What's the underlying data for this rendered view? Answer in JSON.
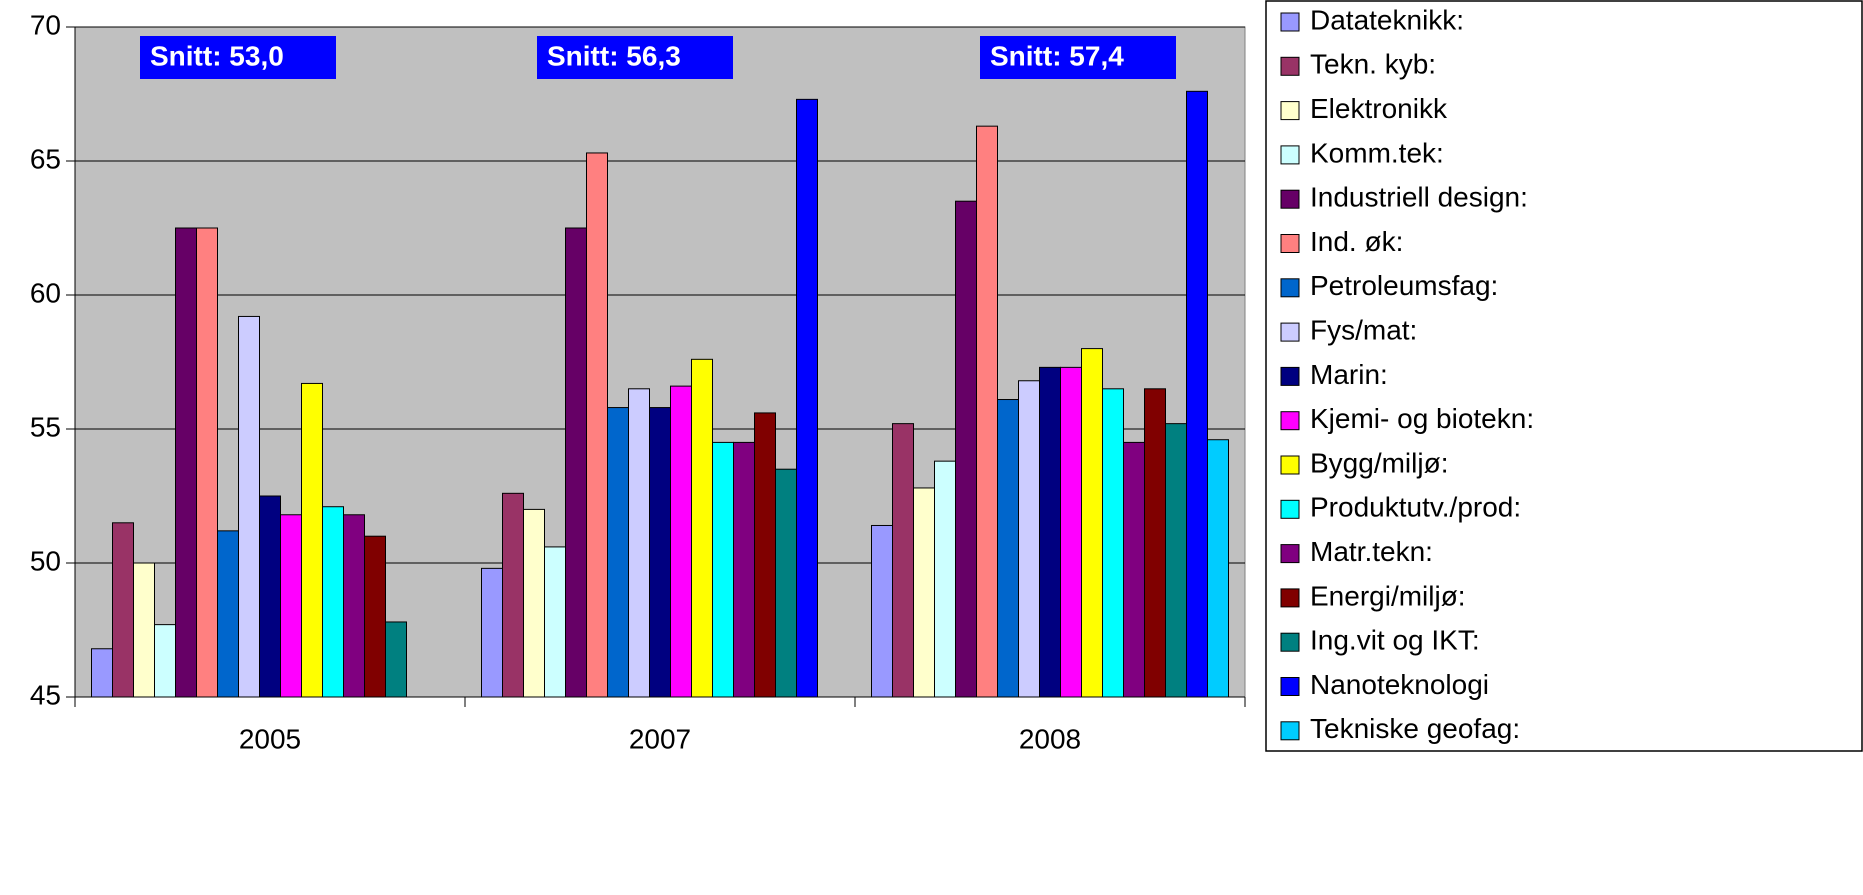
{
  "chart_data": {
    "type": "bar",
    "categories": [
      "2005",
      "2007",
      "2008"
    ],
    "series": [
      {
        "name": "Datateknikk:",
        "color": "#9999ff",
        "values": [
          46.8,
          49.8,
          51.4
        ]
      },
      {
        "name": "Tekn. kyb:",
        "color": "#993366",
        "values": [
          51.5,
          52.6,
          55.2
        ]
      },
      {
        "name": "Elektronikk",
        "color": "#ffffcc",
        "values": [
          50.0,
          52.0,
          52.8
        ]
      },
      {
        "name": "Komm.tek:",
        "color": "#ccffff",
        "values": [
          47.7,
          50.6,
          53.8
        ]
      },
      {
        "name": "Industriell design:",
        "color": "#660066",
        "values": [
          62.5,
          62.5,
          63.5
        ]
      },
      {
        "name": "Ind. øk:",
        "color": "#ff8080",
        "values": [
          62.5,
          65.3,
          66.3
        ]
      },
      {
        "name": "Petroleumsfag:",
        "color": "#0066cc",
        "values": [
          51.2,
          55.8,
          56.1
        ]
      },
      {
        "name": "Fys/mat:",
        "color": "#ccccff",
        "values": [
          59.2,
          56.5,
          56.8
        ]
      },
      {
        "name": "Marin:",
        "color": "#000080",
        "values": [
          52.5,
          55.8,
          57.3
        ]
      },
      {
        "name": "Kjemi- og biotekn:",
        "color": "#ff00ff",
        "values": [
          51.8,
          56.6,
          57.3
        ]
      },
      {
        "name": "Bygg/miljø:",
        "color": "#ffff00",
        "values": [
          56.7,
          57.6,
          58.0
        ]
      },
      {
        "name": "Produktutv./prod:",
        "color": "#00ffff",
        "values": [
          52.1,
          54.5,
          56.5
        ]
      },
      {
        "name": "Matr.tekn:",
        "color": "#800080",
        "values": [
          51.8,
          54.5,
          54.5
        ]
      },
      {
        "name": "Energi/miljø:",
        "color": "#800000",
        "values": [
          51.0,
          55.6,
          56.5
        ]
      },
      {
        "name": "Ing.vit og IKT:",
        "color": "#008080",
        "values": [
          47.8,
          53.5,
          55.2
        ]
      },
      {
        "name": "Nanoteknologi",
        "color": "#0000ff",
        "values": [
          null,
          67.3,
          67.6
        ]
      },
      {
        "name": "Tekniske geofag:",
        "color": "#00ccff",
        "values": [
          null,
          null,
          54.6
        ]
      }
    ],
    "annotations": [
      "Snitt: 53,0",
      "Snitt: 56,3",
      "Snitt: 57,4"
    ],
    "annotation_color": "#0000ff",
    "plot_background": "#c0c0c0",
    "ylim": [
      45,
      70
    ],
    "yticks": [
      45,
      50,
      55,
      60,
      65,
      70
    ],
    "grid": true,
    "legend": "right"
  }
}
